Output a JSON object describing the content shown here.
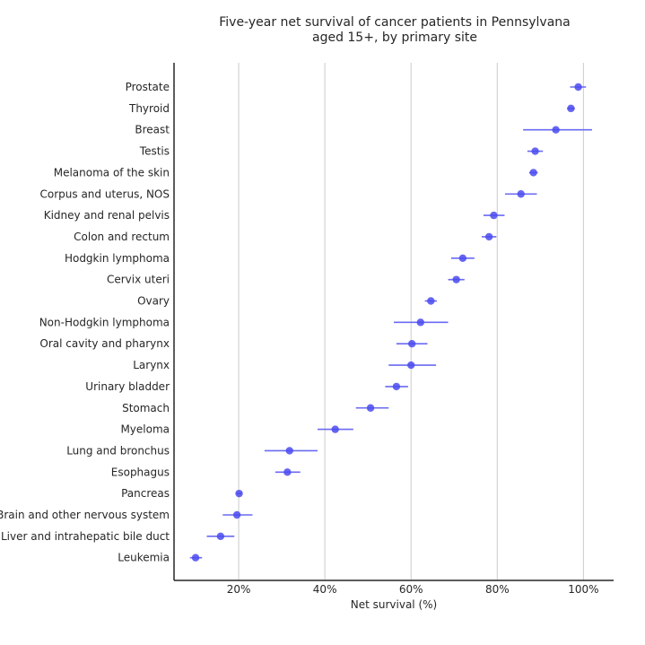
{
  "chart_data": {
    "type": "scatter",
    "title": "Five-year net survival of cancer patients in Pennsylvana",
    "subtitle": "aged 15+, by primary site",
    "xlabel": "Net survival (%)",
    "ylabel": "",
    "xlim": [
      5,
      107
    ],
    "x_ticks": [
      20,
      40,
      60,
      80,
      100
    ],
    "x_tick_labels": [
      "20%",
      "40%",
      "60%",
      "80%",
      "100%"
    ],
    "grid": "vertical",
    "point_color": "#4a4af0",
    "line_color": "#6a6af2",
    "axis_color": "#262626",
    "grid_color": "#cccccc",
    "categories": [
      "Prostate",
      "Thyroid",
      "Breast",
      "Testis",
      "Melanoma of the skin",
      "Corpus and uterus, NOS",
      "Kidney and renal pelvis",
      "Colon and rectum",
      "Hodgkin lymphoma",
      "Cervix uteri",
      "Ovary",
      "Non-Hodgkin lymphoma",
      "Oral cavity and pharynx",
      "Larynx",
      "Urinary bladder",
      "Stomach",
      "Myeloma",
      "Lung and bronchus",
      "Esophagus",
      "Pancreas",
      "Brain and other nervous system",
      "Liver and intrahepatic bile duct",
      "Leukemia"
    ],
    "values": [
      98.8,
      97.1,
      93.6,
      88.8,
      88.4,
      85.5,
      79.2,
      78.1,
      72.0,
      70.5,
      64.6,
      62.2,
      60.2,
      60.0,
      56.6,
      50.6,
      42.4,
      31.8,
      31.3,
      20.1,
      19.6,
      15.8,
      10.0
    ],
    "ci_low": [
      96.9,
      96.2,
      86.0,
      87.0,
      87.4,
      81.8,
      76.8,
      76.4,
      69.3,
      68.6,
      63.2,
      56.0,
      56.6,
      54.8,
      54.0,
      47.2,
      38.3,
      26.0,
      28.5,
      19.5,
      16.3,
      12.6,
      8.7
    ],
    "ci_high": [
      100.6,
      98.0,
      102.0,
      90.6,
      89.4,
      89.2,
      81.7,
      79.8,
      74.7,
      72.4,
      66.0,
      68.6,
      63.8,
      65.8,
      59.3,
      54.8,
      46.6,
      38.3,
      34.3,
      20.7,
      23.2,
      19.0,
      11.5
    ]
  }
}
